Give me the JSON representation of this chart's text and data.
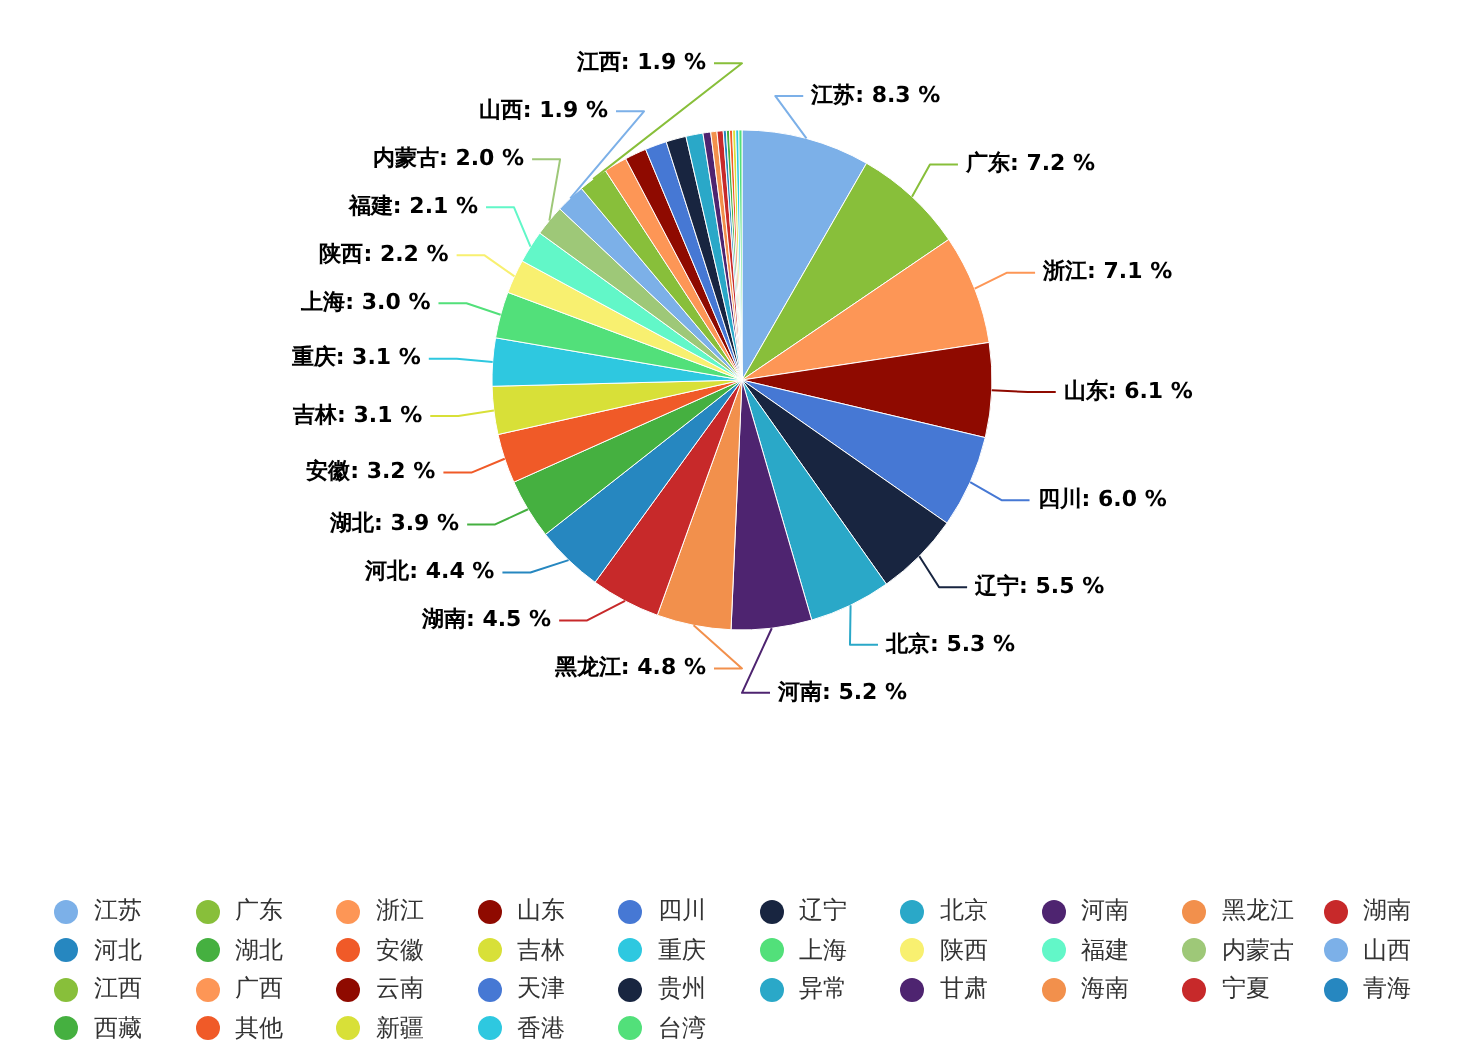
{
  "chart_data": {
    "type": "pie",
    "legend": "bottom",
    "categories": [
      "江苏",
      "广东",
      "浙江",
      "山东",
      "四川",
      "辽宁",
      "北京",
      "河南",
      "黑龙江",
      "湖南",
      "河北",
      "湖北",
      "安徽",
      "吉林",
      "重庆",
      "上海",
      "陕西",
      "福建",
      "内蒙古",
      "山西",
      "江西",
      "广西",
      "云南",
      "天津",
      "贵州",
      "异常",
      "甘肃",
      "海南",
      "宁夏",
      "青海",
      "西藏",
      "其他",
      "新疆",
      "香港",
      "台湾"
    ],
    "values": [
      8.3,
      7.2,
      7.1,
      6.1,
      6.0,
      5.5,
      5.3,
      5.2,
      4.8,
      4.5,
      4.4,
      3.9,
      3.2,
      3.1,
      3.1,
      3.0,
      2.2,
      2.1,
      2.0,
      1.9,
      1.9,
      1.5,
      1.4,
      1.4,
      1.3,
      1.1,
      0.5,
      0.4,
      0.4,
      0.2,
      0.2,
      0.2,
      0.2,
      0.2,
      0.2
    ],
    "value_labels": [
      "江苏: 8.3 %",
      "广东: 7.2 %",
      "浙江: 7.1 %",
      "山东: 6.1 %",
      "四川: 6.0 %",
      "辽宁: 5.5 %",
      "北京: 5.3 %",
      "河南: 5.2 %",
      "黑龙江: 4.8 %",
      "湖南: 4.5 %",
      "河北: 4.4 %",
      "湖北: 3.9 %",
      "安徽: 3.2 %",
      "吉林: 3.1 %",
      "重庆: 3.1 %",
      "上海: 3.0 %",
      "陕西: 2.2 %",
      "福建: 2.1 %",
      "内蒙古: 2.0 %",
      "山西: 1.9 %",
      "江西: 1.9 %",
      null,
      null,
      null,
      null,
      null,
      null,
      null,
      null,
      null,
      null,
      null,
      null,
      null,
      null
    ],
    "colors": [
      "#7cb0e8",
      "#88bf3a",
      "#fd9656",
      "#8f0a00",
      "#4678d4",
      "#182540",
      "#2aa8c8",
      "#4e2470",
      "#f2904c",
      "#c7292a",
      "#2687c0",
      "#45b040",
      "#f05a28",
      "#d8e038",
      "#2ec8e0",
      "#52e07a",
      "#f8f070",
      "#62f7c8",
      "#9ec878",
      "#7cb0e8",
      "#88bf3a",
      "#fd9656",
      "#8f0a00",
      "#4678d4",
      "#182540",
      "#2aa8c8",
      "#4e2470",
      "#f2904c",
      "#c7292a",
      "#2687c0",
      "#45b040",
      "#f05a28",
      "#d8e038",
      "#2ec8e0",
      "#52e07a"
    ]
  }
}
